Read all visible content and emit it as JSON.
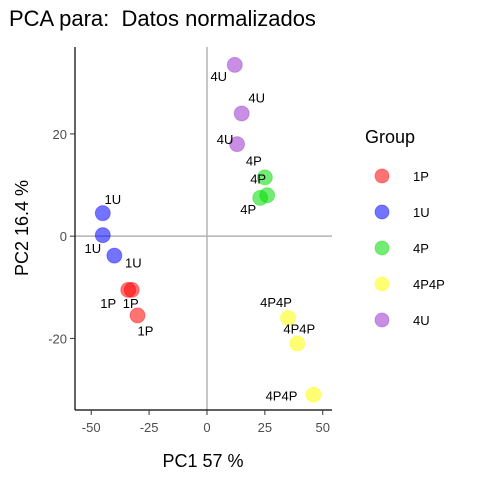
{
  "chart_data": {
    "type": "scatter",
    "title": "PCA para:  Datos normalizados",
    "xlabel": "PC1 57 %",
    "ylabel": "PC2 16.4 %",
    "xlim": [
      -57,
      54
    ],
    "ylim": [
      -34,
      37
    ],
    "xticks": [
      -50,
      -25,
      0,
      25,
      50
    ],
    "xtick_labels": [
      "-50",
      "-25",
      "0",
      "25",
      "50"
    ],
    "yticks": [
      -20,
      0,
      20
    ],
    "ytick_labels": [
      "-20",
      "0",
      "20"
    ],
    "reference_lines": {
      "x": 0,
      "y": 0
    },
    "grid": false,
    "legend": {
      "title": "Group",
      "position": "right",
      "entries": [
        {
          "label": "1P",
          "color": "#ff0000"
        },
        {
          "label": "1U",
          "color": "#0000ff"
        },
        {
          "label": "4P",
          "color": "#00dd00"
        },
        {
          "label": "4P4P",
          "color": "#ffff00"
        },
        {
          "label": "4U",
          "color": "#9932cc"
        }
      ]
    },
    "series": [
      {
        "name": "1P",
        "color": "#ff0000",
        "points": [
          {
            "x": -34,
            "y": -10.5,
            "label": "1P"
          },
          {
            "x": -32.5,
            "y": -10.5,
            "label": "1P"
          },
          {
            "x": -30,
            "y": -15.5,
            "label": "1P"
          }
        ]
      },
      {
        "name": "1U",
        "color": "#0000ff",
        "points": [
          {
            "x": -45,
            "y": 4.5,
            "label": "1U"
          },
          {
            "x": -45,
            "y": 0.2,
            "label": "1U"
          },
          {
            "x": -40,
            "y": -3.8,
            "label": "1U"
          }
        ]
      },
      {
        "name": "4P",
        "color": "#00dd00",
        "points": [
          {
            "x": 25,
            "y": 11.5,
            "label": "4P"
          },
          {
            "x": 26,
            "y": 8,
            "label": "4P"
          },
          {
            "x": 23,
            "y": 7.5,
            "label": "4P"
          }
        ]
      },
      {
        "name": "4P4P",
        "color": "#ffff00",
        "points": [
          {
            "x": 35,
            "y": -16,
            "label": "4P4P"
          },
          {
            "x": 39,
            "y": -21,
            "label": "4P4P"
          },
          {
            "x": 46,
            "y": -31,
            "label": "4P4P"
          }
        ]
      },
      {
        "name": "4U",
        "color": "#9932cc",
        "points": [
          {
            "x": 12,
            "y": 33.5,
            "label": "4U"
          },
          {
            "x": 15,
            "y": 24,
            "label": "4U"
          },
          {
            "x": 13,
            "y": 18,
            "label": "4U"
          }
        ]
      }
    ]
  }
}
